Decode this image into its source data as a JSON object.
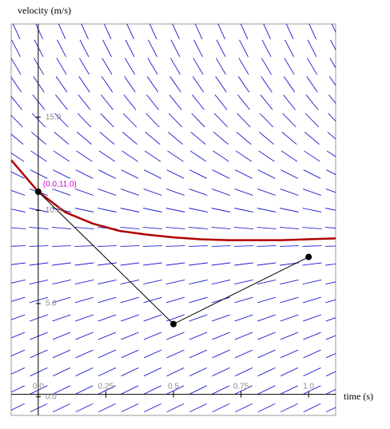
{
  "chart_data": {
    "type": "slope_field",
    "xlabel": "velocity (m/s)",
    "x_axis_label": "time (s)",
    "xlim": [
      -0.1,
      1.1
    ],
    "ylim": [
      -1,
      20
    ],
    "xticks": [
      {
        "value": 0,
        "label": "0.0"
      },
      0.25,
      0.5,
      0.75,
      {
        "value": 1,
        "label": "1.0"
      }
    ],
    "yticks": [
      {
        "value": 0,
        "label": "0.0"
      },
      {
        "value": 5,
        "label": "5.0"
      },
      {
        "value": 10,
        "label": "10.0"
      },
      {
        "value": 15,
        "label": "15.0"
      }
    ],
    "field": {
      "g": 7,
      "k": 0.1,
      "color": "#0000cc"
    },
    "series": [
      {
        "name": "solution",
        "color": "#b00000",
        "x": [
          -0.1,
          0,
          0.1,
          0.2,
          0.3,
          0.4,
          0.5,
          0.6,
          0.7,
          0.8,
          0.9,
          1.0,
          1.1
        ],
        "values": [
          12.7,
          11.0,
          9.9,
          9.3,
          8.9,
          8.7,
          8.55,
          8.45,
          8.4,
          8.4,
          8.4,
          8.45,
          8.5
        ]
      },
      {
        "name": "euler",
        "color": "#000000",
        "x": [
          0,
          0.5,
          1.0
        ],
        "values": [
          11.0,
          3.9,
          7.5
        ]
      }
    ],
    "annotation": "(0.0,11.0)"
  }
}
